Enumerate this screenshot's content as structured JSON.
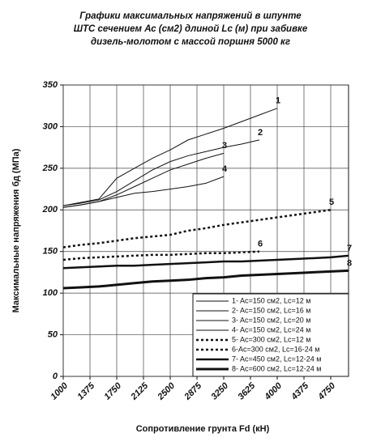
{
  "chart_data": {
    "type": "line",
    "title": [
      "Графики максимальных напряжений в шпунте",
      "ШТС сечением Ас (см2) длиной Lc (м) при забивке",
      "дизель-молотом с массой поршня 5000 кг"
    ],
    "x_label": "Сопротивление грунта Fd (кН)",
    "y_label": "Максимальные напряжения бд  (МПа)",
    "x": [
      1000,
      1250,
      1500,
      1750,
      2000,
      2250,
      2500,
      2750,
      3000,
      3250,
      3500,
      3750,
      4000,
      4250,
      4500,
      4750,
      5000
    ],
    "xlim": [
      1000,
      5000
    ],
    "xticks": [
      1000,
      1375,
      1750,
      2125,
      2500,
      2875,
      3250,
      3625,
      4000,
      4375,
      4750
    ],
    "ylim": [
      0,
      350
    ],
    "yticks": [
      0,
      50,
      100,
      150,
      200,
      250,
      300,
      350
    ],
    "grid": true,
    "legend": "lower right",
    "series": [
      {
        "name": "1- Ac=150 см2, Lc=12 м",
        "label": "1",
        "color": "#111",
        "style": "solid",
        "width": 1,
        "values": [
          205,
          209,
          213,
          238,
          250,
          262,
          272,
          284,
          291,
          298,
          306,
          314,
          322,
          null,
          null,
          null,
          null
        ]
      },
      {
        "name": "2- Ac=150 см2, Lc=16 м",
        "label": "2",
        "color": "#111",
        "style": "solid",
        "width": 1,
        "values": [
          205,
          208,
          212,
          222,
          235,
          248,
          258,
          265,
          270,
          275,
          279,
          284,
          null,
          null,
          null,
          null,
          null
        ]
      },
      {
        "name": "3- Ac=150 см2, Lc=20 м",
        "label": "3",
        "color": "#111",
        "style": "solid",
        "width": 1,
        "values": [
          203,
          206,
          210,
          218,
          228,
          238,
          248,
          255,
          262,
          268,
          null,
          null,
          null,
          null,
          null,
          null,
          null
        ]
      },
      {
        "name": "4- Ac=150 см2, Lc=24 м",
        "label": "4",
        "color": "#111",
        "style": "solid",
        "width": 1,
        "values": [
          203,
          206,
          210,
          215,
          220,
          222,
          225,
          228,
          232,
          240,
          null,
          null,
          null,
          null,
          null,
          null,
          null
        ]
      },
      {
        "name": "5- Ac=300 см2, Lc=12 м",
        "label": "5",
        "color": "#111",
        "style": "dotted",
        "width": 2.5,
        "values": [
          155,
          158,
          160,
          163,
          166,
          168,
          170,
          175,
          178,
          182,
          185,
          188,
          191,
          194,
          197,
          200,
          null
        ]
      },
      {
        "name": "6-Ac=300 см2, Lc=16-24 м",
        "label": "6",
        "color": "#111",
        "style": "dotted",
        "width": 2.5,
        "values": [
          140,
          142,
          143,
          144,
          145,
          146,
          146,
          147,
          148,
          148,
          149,
          150,
          null,
          null,
          null,
          null,
          null
        ]
      },
      {
        "name": "7- Ac=450 см2, Lc=12-24 м",
        "label": "7",
        "color": "#111",
        "style": "solid",
        "width": 2.5,
        "values": [
          130,
          131,
          132,
          133,
          133,
          134,
          135,
          136,
          137,
          138,
          138,
          139,
          140,
          141,
          142,
          143,
          145
        ]
      },
      {
        "name": "8- Ac=600 см2, Lc=12-24 м",
        "label": "8",
        "color": "#111",
        "style": "solid",
        "width": 3,
        "values": [
          106,
          107,
          108,
          110,
          112,
          114,
          115,
          116,
          118,
          119,
          121,
          122,
          123,
          124,
          125,
          126,
          127
        ]
      }
    ]
  }
}
